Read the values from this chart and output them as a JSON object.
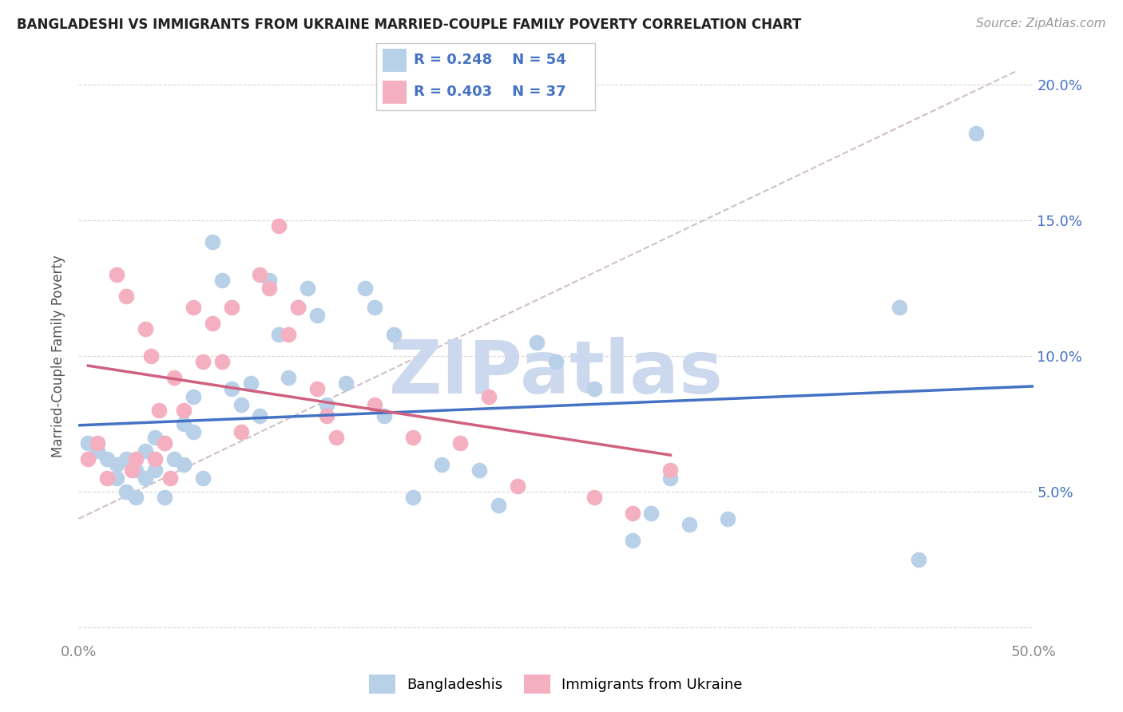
{
  "title": "BANGLADESHI VS IMMIGRANTS FROM UKRAINE MARRIED-COUPLE FAMILY POVERTY CORRELATION CHART",
  "source": "Source: ZipAtlas.com",
  "ylabel": "Married-Couple Family Poverty",
  "xlim": [
    0.0,
    0.5
  ],
  "ylim": [
    -0.005,
    0.205
  ],
  "yticks": [
    0.0,
    0.05,
    0.1,
    0.15,
    0.2
  ],
  "yticklabels_right": [
    "",
    "5.0%",
    "10.0%",
    "15.0%",
    "20.0%"
  ],
  "xtick_positions": [
    0.0,
    0.1,
    0.2,
    0.3,
    0.4,
    0.5
  ],
  "xticklabels": [
    "0.0%",
    "",
    "",
    "",
    "",
    "50.0%"
  ],
  "blue_R": "0.248",
  "blue_N": "54",
  "pink_R": "0.403",
  "pink_N": "37",
  "blue_fill": "#b8d0e8",
  "pink_fill": "#f4b0c0",
  "blue_line": "#4472c4",
  "pink_line": "#d06080",
  "dash_color": "#d0c0c8",
  "grid_color": "#d8d8d8",
  "tick_color": "#4472c4",
  "watermark_color": "#ccd8ee",
  "blue_x": [
    0.005,
    0.01,
    0.015,
    0.02,
    0.02,
    0.025,
    0.025,
    0.03,
    0.03,
    0.035,
    0.035,
    0.04,
    0.04,
    0.045,
    0.045,
    0.05,
    0.055,
    0.055,
    0.06,
    0.06,
    0.065,
    0.07,
    0.075,
    0.08,
    0.085,
    0.09,
    0.095,
    0.1,
    0.105,
    0.11,
    0.115,
    0.12,
    0.125,
    0.13,
    0.14,
    0.15,
    0.155,
    0.16,
    0.165,
    0.175,
    0.19,
    0.21,
    0.22,
    0.24,
    0.25,
    0.27,
    0.29,
    0.3,
    0.31,
    0.32,
    0.34,
    0.43,
    0.44,
    0.47
  ],
  "blue_y": [
    0.068,
    0.065,
    0.062,
    0.06,
    0.055,
    0.062,
    0.05,
    0.058,
    0.048,
    0.065,
    0.055,
    0.07,
    0.058,
    0.068,
    0.048,
    0.062,
    0.075,
    0.06,
    0.085,
    0.072,
    0.055,
    0.142,
    0.128,
    0.088,
    0.082,
    0.09,
    0.078,
    0.128,
    0.108,
    0.092,
    0.118,
    0.125,
    0.115,
    0.082,
    0.09,
    0.125,
    0.118,
    0.078,
    0.108,
    0.048,
    0.06,
    0.058,
    0.045,
    0.105,
    0.098,
    0.088,
    0.032,
    0.042,
    0.055,
    0.038,
    0.04,
    0.118,
    0.025,
    0.182
  ],
  "pink_x": [
    0.005,
    0.01,
    0.015,
    0.02,
    0.025,
    0.028,
    0.03,
    0.035,
    0.038,
    0.04,
    0.042,
    0.045,
    0.048,
    0.05,
    0.055,
    0.06,
    0.065,
    0.07,
    0.075,
    0.08,
    0.085,
    0.095,
    0.1,
    0.105,
    0.11,
    0.115,
    0.125,
    0.13,
    0.135,
    0.155,
    0.175,
    0.2,
    0.215,
    0.23,
    0.27,
    0.29,
    0.31
  ],
  "pink_y": [
    0.062,
    0.068,
    0.055,
    0.13,
    0.122,
    0.058,
    0.062,
    0.11,
    0.1,
    0.062,
    0.08,
    0.068,
    0.055,
    0.092,
    0.08,
    0.118,
    0.098,
    0.112,
    0.098,
    0.118,
    0.072,
    0.13,
    0.125,
    0.148,
    0.108,
    0.118,
    0.088,
    0.078,
    0.07,
    0.082,
    0.07,
    0.068,
    0.085,
    0.052,
    0.048,
    0.042,
    0.058
  ]
}
